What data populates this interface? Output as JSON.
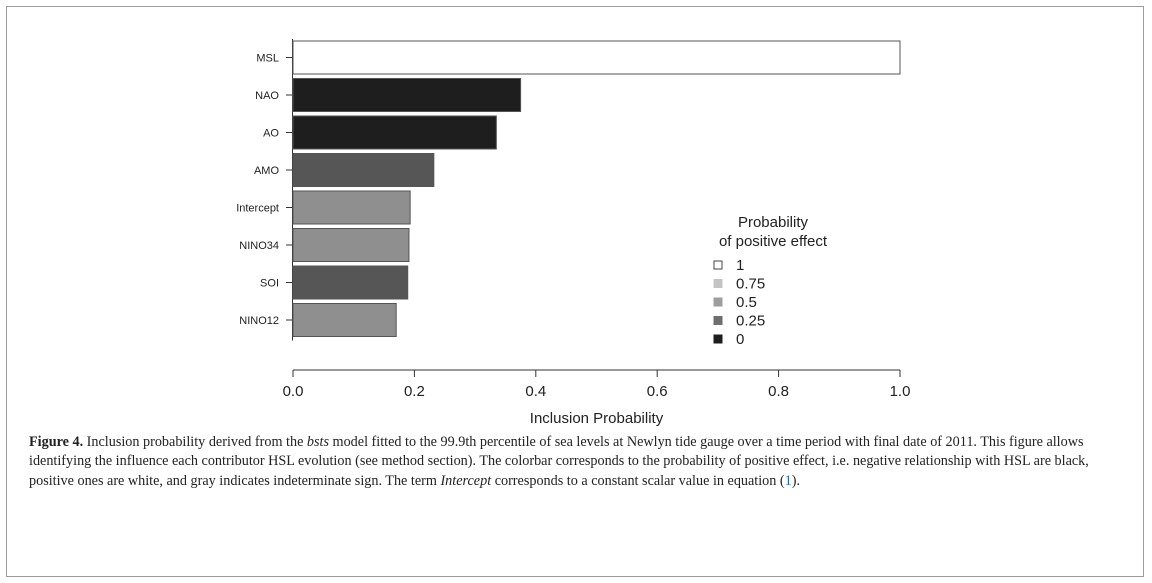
{
  "chart_data": {
    "type": "bar",
    "orientation": "horizontal",
    "categories": [
      "MSL",
      "NAO",
      "AO",
      "AMO",
      "Intercept",
      "NINO34",
      "SOI",
      "NINO12"
    ],
    "values": [
      1.0,
      0.375,
      0.335,
      0.232,
      0.193,
      0.191,
      0.189,
      0.17
    ],
    "positive_effect_probability": [
      1.0,
      0.0,
      0.0,
      0.25,
      0.5,
      0.5,
      0.25,
      0.5
    ],
    "xlabel": "Inclusion Probability",
    "ylabel": "",
    "xlim": [
      0.0,
      1.0
    ],
    "xticks": [
      "0.0",
      "0.2",
      "0.4",
      "0.6",
      "0.8",
      "1.0"
    ],
    "grid": false,
    "legend": {
      "title_line1": "Probability",
      "title_line2": "of positive effect",
      "placement": "right",
      "entries": [
        {
          "label": "1",
          "color": "#ffffff"
        },
        {
          "label": "0.75",
          "color": "#c4c4c4"
        },
        {
          "label": "0.5",
          "color": "#9e9e9e"
        },
        {
          "label": "0.25",
          "color": "#6e6e6e"
        },
        {
          "label": "0",
          "color": "#1e1e1e"
        }
      ]
    }
  },
  "caption": {
    "label": "Figure 4.",
    "part1": " Inclusion probability derived from the ",
    "model": "bsts",
    "part2": " model fitted to the 99.9th percentile of sea levels at Newlyn tide gauge over a time period with final date of 2011. This figure allows identifying the influence each contributor HSL evolution (see method section). The colorbar corresponds to the probability of positive effect, i.e. negative relationship with HSL are black, positive ones are white, and gray indicates indeterminate sign. The term ",
    "term": "Intercept",
    "part3": " corresponds to a constant scalar value in equation (",
    "eq_ref": "1",
    "part4": ")."
  }
}
